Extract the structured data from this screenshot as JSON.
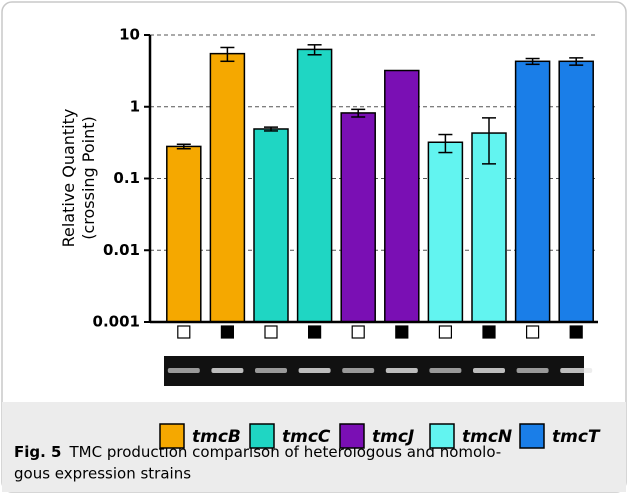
{
  "chart_data": {
    "type": "bar",
    "log_scale": true,
    "grid": true,
    "ylabel": [
      "Relative Quantity",
      "(crossing Point)"
    ],
    "categories": [
      null,
      null
    ],
    "series": [
      {
        "name": "tmcB",
        "color": "#f5a800",
        "values": [
          0.28,
          5.5
        ],
        "errors": [
          0.02,
          1.2
        ]
      },
      {
        "name": "tmcC",
        "color": "#1fd6c3",
        "values": [
          0.49,
          6.3
        ],
        "errors": [
          0.03,
          1.0
        ]
      },
      {
        "name": "tmcJ",
        "color": "#7a0fb4",
        "values": [
          0.82,
          3.2
        ],
        "errors": [
          0.1,
          0
        ]
      },
      {
        "name": "tmcN",
        "color": "#62f4f0",
        "values": [
          0.32,
          0.43
        ],
        "errors": [
          0.09,
          0.27
        ]
      },
      {
        "name": "tmcT",
        "color": "#1a7ee8",
        "values": [
          4.3,
          4.3
        ],
        "errors": [
          0.4,
          0.5
        ]
      }
    ],
    "ylim": [
      0.001,
      10
    ],
    "yticks": [
      0.001,
      0.01,
      0.1,
      1,
      10
    ]
  },
  "caption": {
    "label": "Fig. 5",
    "lines": [
      "TMC production comparison of heterologous and homolo-",
      "gous expression strains"
    ]
  }
}
